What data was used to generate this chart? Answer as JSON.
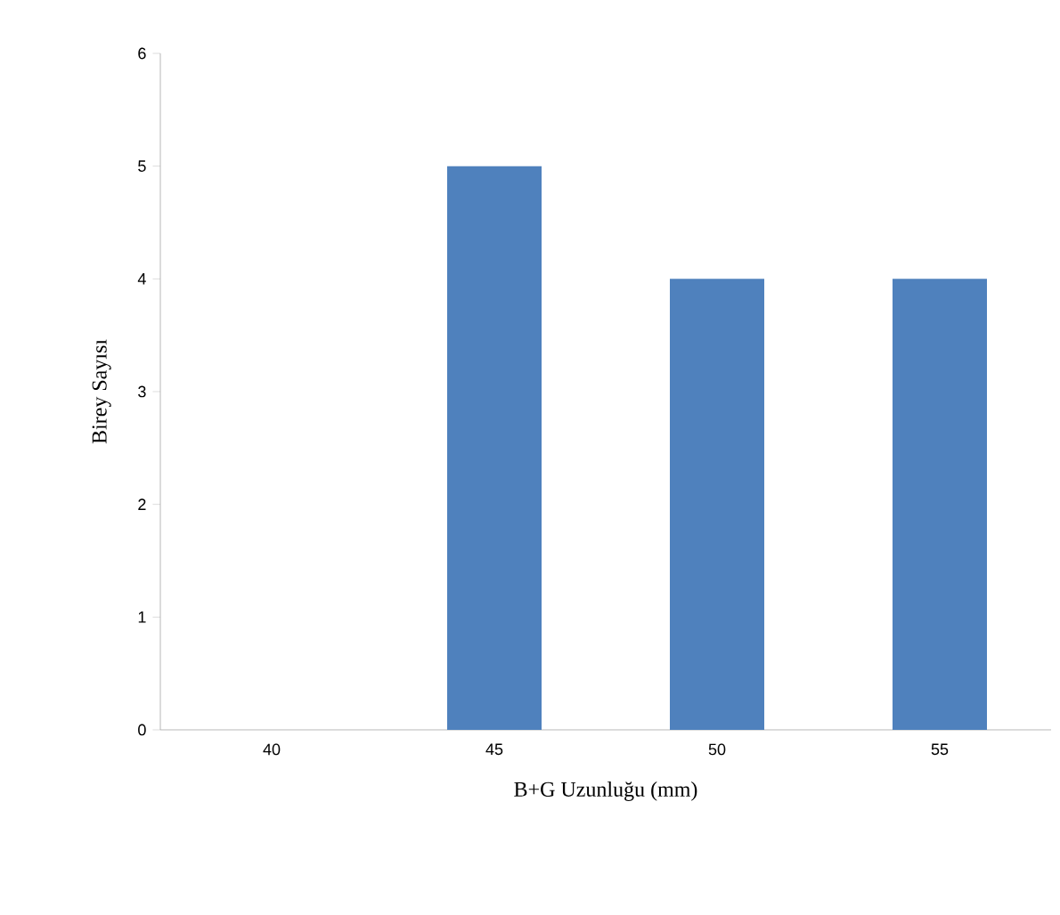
{
  "chart_data": {
    "type": "bar",
    "xlabel": "B+G Uzunluğu (mm)",
    "ylabel": "Birey Sayısı",
    "categories": [
      "40",
      "45",
      "50",
      "55"
    ],
    "values": [
      0,
      5,
      4,
      4
    ],
    "color": "#4f81bd",
    "ylim": [
      0,
      6
    ],
    "yticks": [
      0,
      1,
      2,
      3,
      4,
      5,
      6
    ]
  }
}
